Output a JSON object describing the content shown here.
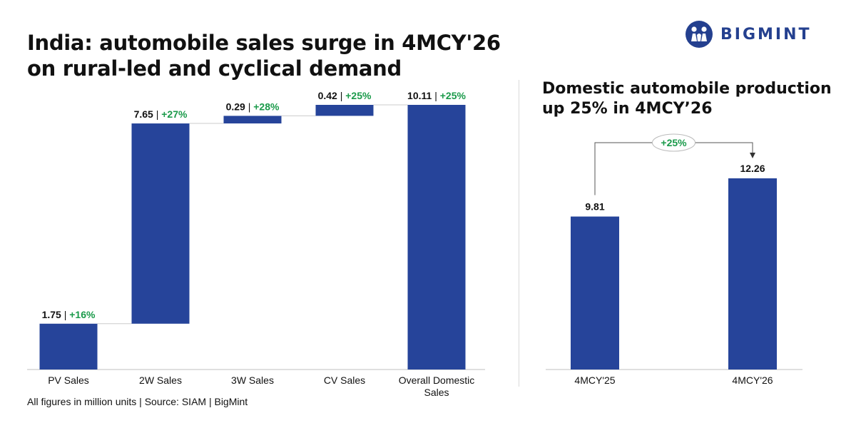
{
  "header": {
    "title": "India: automobile sales surge in 4MCY'26 on rural-led and cyclical demand",
    "right_title": "Domestic automobile production up 25% in 4MCY’26",
    "footer": "All figures in million units | Source: SIAM | BigMint",
    "logo_text": "BIGMINT"
  },
  "colors": {
    "bar": "#26449a",
    "growth": "#1a9a4a",
    "text": "#111111",
    "axis": "#bfbfbf",
    "logo": "#24408f"
  },
  "chart_data": [
    {
      "type": "bar",
      "subtype": "waterfall",
      "categories": [
        "PV Sales",
        "2W Sales",
        "3W Sales",
        "CV Sales",
        "Overall Domestic Sales"
      ],
      "values": [
        1.75,
        7.65,
        0.29,
        0.42,
        10.11
      ],
      "growth": [
        "+16%",
        "+27%",
        "+28%",
        "+25%",
        "+25%"
      ],
      "value_labels": [
        "1.75",
        "7.65",
        "0.29",
        "0.42",
        "10.11"
      ],
      "total_index": 4,
      "ylim": [
        0,
        10.11
      ]
    },
    {
      "type": "bar",
      "title": "Domestic automobile production up 25% in 4MCY’26",
      "categories": [
        "4MCY'25",
        "4MCY'26"
      ],
      "values": [
        9.81,
        12.26
      ],
      "value_labels": [
        "9.81",
        "12.26"
      ],
      "annotation": "+25%",
      "ylim": [
        0,
        12.26
      ]
    }
  ]
}
